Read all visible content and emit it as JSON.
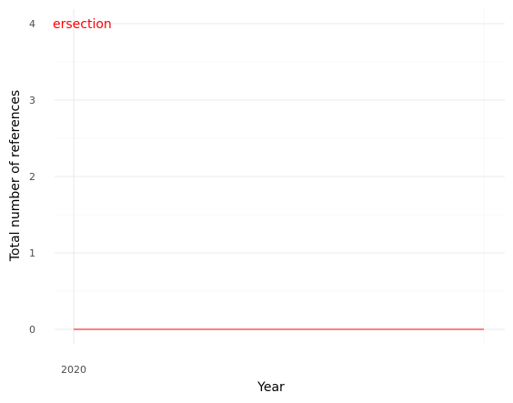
{
  "chart_data": {
    "type": "line",
    "x": [
      2020,
      2020.5
    ],
    "series": [
      {
        "values": [
          0,
          0
        ],
        "color": "#ff0000"
      }
    ],
    "xticks": [
      "2020"
    ],
    "yticks": [
      "0",
      "1",
      "2",
      "3",
      "4"
    ],
    "xlabel": "Year",
    "ylabel": "Total number of references",
    "ylim": [
      0,
      4
    ],
    "grid": true,
    "annotation": {
      "text": "ersection",
      "color": "#ff0000"
    }
  }
}
